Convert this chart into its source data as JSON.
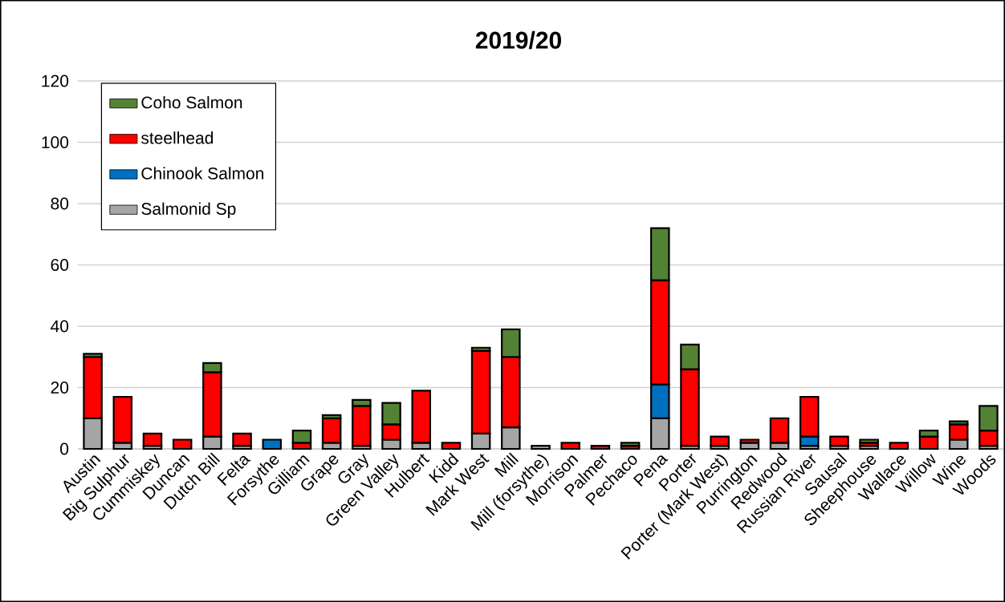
{
  "chart_data": {
    "type": "bar",
    "stacked": true,
    "title": "2019/20",
    "categories": [
      "Austin",
      "Big Sulphur",
      "Cummiskey",
      "Duncan",
      "Dutch Bill",
      "Felta",
      "Forsythe",
      "Gilliam",
      "Grape",
      "Gray",
      "Green Valley",
      "Hulbert",
      "Kidd",
      "Mark West",
      "Mill",
      "Mill (forsythe)",
      "Morrison",
      "Palmer",
      "Pechaco",
      "Pena",
      "Porter",
      "Porter (Mark West)",
      "Purrington",
      "Redwood",
      "Russian River",
      "Sausal",
      "Sheephouse",
      "Wallace",
      "Willow",
      "Wine",
      "Woods"
    ],
    "series": [
      {
        "name": "Salmonid Sp",
        "color": "#a5a5a5",
        "values": [
          10,
          2,
          1,
          0,
          4,
          1,
          0,
          0,
          2,
          1,
          3,
          2,
          0,
          5,
          7,
          1,
          0,
          0,
          0,
          10,
          1,
          1,
          2,
          2,
          1,
          1,
          1,
          0,
          0,
          3,
          1
        ]
      },
      {
        "name": "Chinook Salmon",
        "color": "#0070c0",
        "values": [
          0,
          0,
          0,
          0,
          0,
          0,
          3,
          0,
          0,
          0,
          0,
          0,
          0,
          0,
          0,
          0,
          0,
          0,
          0,
          11,
          0,
          0,
          0,
          0,
          3,
          0,
          0,
          0,
          0,
          0,
          0
        ]
      },
      {
        "name": "steelhead",
        "color": "#ff0000",
        "values": [
          20,
          15,
          4,
          3,
          21,
          4,
          0,
          2,
          8,
          13,
          5,
          17,
          2,
          27,
          23,
          0,
          2,
          1,
          1,
          34,
          25,
          3,
          1,
          8,
          13,
          3,
          1,
          2,
          4,
          5,
          5
        ]
      },
      {
        "name": "Coho Salmon",
        "color": "#548235",
        "values": [
          1,
          0,
          0,
          0,
          3,
          0,
          0,
          4,
          1,
          2,
          7,
          0,
          0,
          1,
          9,
          0,
          0,
          0,
          1,
          17,
          8,
          0,
          0,
          0,
          0,
          0,
          1,
          0,
          2,
          1,
          8
        ]
      }
    ],
    "ylim": [
      0,
      120
    ],
    "yticks": [
      0,
      20,
      40,
      60,
      80,
      100,
      120
    ],
    "grid": "y",
    "legend": "top left"
  }
}
